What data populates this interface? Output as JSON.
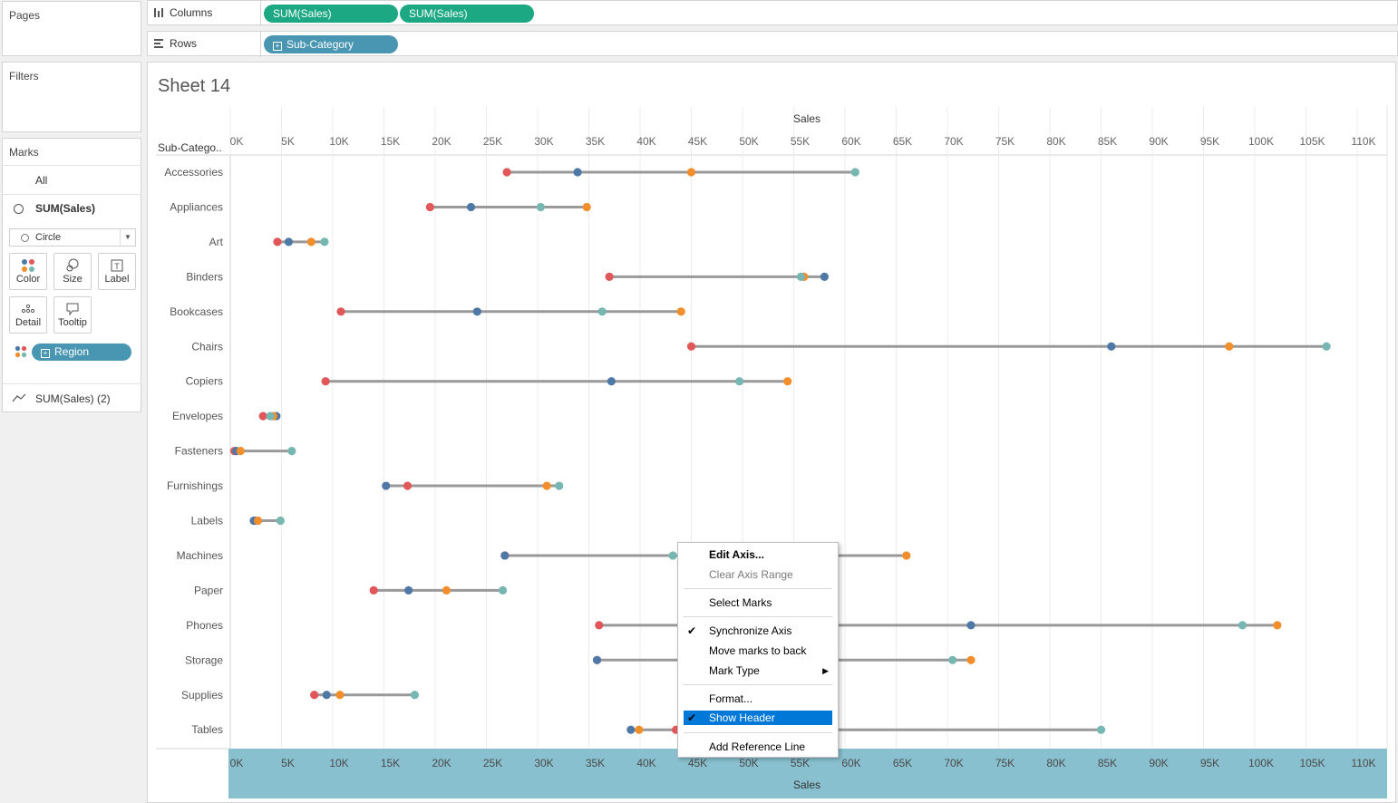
{
  "left_panel": {
    "pages_label": "Pages",
    "filters_label": "Filters",
    "marks_label": "Marks",
    "all_label": "All",
    "measure_label": "SUM(Sales)",
    "mark_type": "Circle",
    "buttons": {
      "color": "Color",
      "size": "Size",
      "label": "Label",
      "detail": "Detail",
      "tooltip": "Tooltip"
    },
    "region_pill": "Region",
    "measure2_label": "SUM(Sales) (2)"
  },
  "shelves": {
    "columns_label": "Columns",
    "columns_pills": [
      "SUM(Sales)",
      "SUM(Sales)"
    ],
    "rows_label": "Rows",
    "rows_pill": "Sub-Category"
  },
  "sheet": {
    "title": "Sheet 14",
    "row_header": "Sub-Catego.."
  },
  "context_menu": {
    "items": {
      "edit_axis": "Edit Axis...",
      "clear_axis_range": "Clear Axis Range",
      "select_marks": "Select Marks",
      "synchronize_axis": "Synchronize Axis",
      "move_marks_back": "Move marks to back",
      "mark_type": "Mark Type",
      "format": "Format...",
      "show_header": "Show Header",
      "add_reference_line": "Add Reference Line"
    }
  },
  "colors": {
    "accent_green": "#1ba882",
    "accent_blue": "#4996b2",
    "axis_band": "#89c0cf",
    "menu_highlight": "#0078d7",
    "line": "#999999"
  },
  "chart_data": {
    "type": "scatter",
    "xlabel": "Sales",
    "xlim": [
      0,
      112000
    ],
    "x_ticks": [
      "0K",
      "5K",
      "10K",
      "15K",
      "20K",
      "25K",
      "30K",
      "35K",
      "40K",
      "45K",
      "50K",
      "55K",
      "60K",
      "65K",
      "70K",
      "75K",
      "80K",
      "85K",
      "90K",
      "95K",
      "100K",
      "105K",
      "110K"
    ],
    "grid": true,
    "categories": [
      "Accessories",
      "Appliances",
      "Art",
      "Binders",
      "Bookcases",
      "Chairs",
      "Copiers",
      "Envelopes",
      "Fasteners",
      "Furnishings",
      "Labels",
      "Machines",
      "Paper",
      "Phones",
      "Storage",
      "Supplies",
      "Tables"
    ],
    "series": [
      {
        "color": "#e15759",
        "values": [
          27000,
          19500,
          4600,
          37000,
          10800,
          45000,
          9300,
          3200,
          400,
          17300,
          2400,
          26800,
          14000,
          36000,
          35800,
          8200,
          43500
        ]
      },
      {
        "color": "#4e79a7",
        "values": [
          33900,
          23500,
          5700,
          58000,
          24100,
          86000,
          37200,
          4500,
          600,
          15200,
          2300,
          26800,
          17400,
          72300,
          35800,
          9400,
          39100
        ]
      },
      {
        "color": "#f28e2b",
        "values": [
          45000,
          34800,
          7900,
          56000,
          44000,
          97500,
          54400,
          4200,
          1000,
          30900,
          2700,
          66000,
          21100,
          102200,
          72300,
          10700,
          39900
        ]
      },
      {
        "color": "#76b7b2",
        "values": [
          61000,
          30300,
          9200,
          55700,
          36300,
          107000,
          49700,
          3900,
          6000,
          32100,
          4900,
          43200,
          26600,
          98800,
          70500,
          18000,
          85000
        ]
      }
    ]
  }
}
